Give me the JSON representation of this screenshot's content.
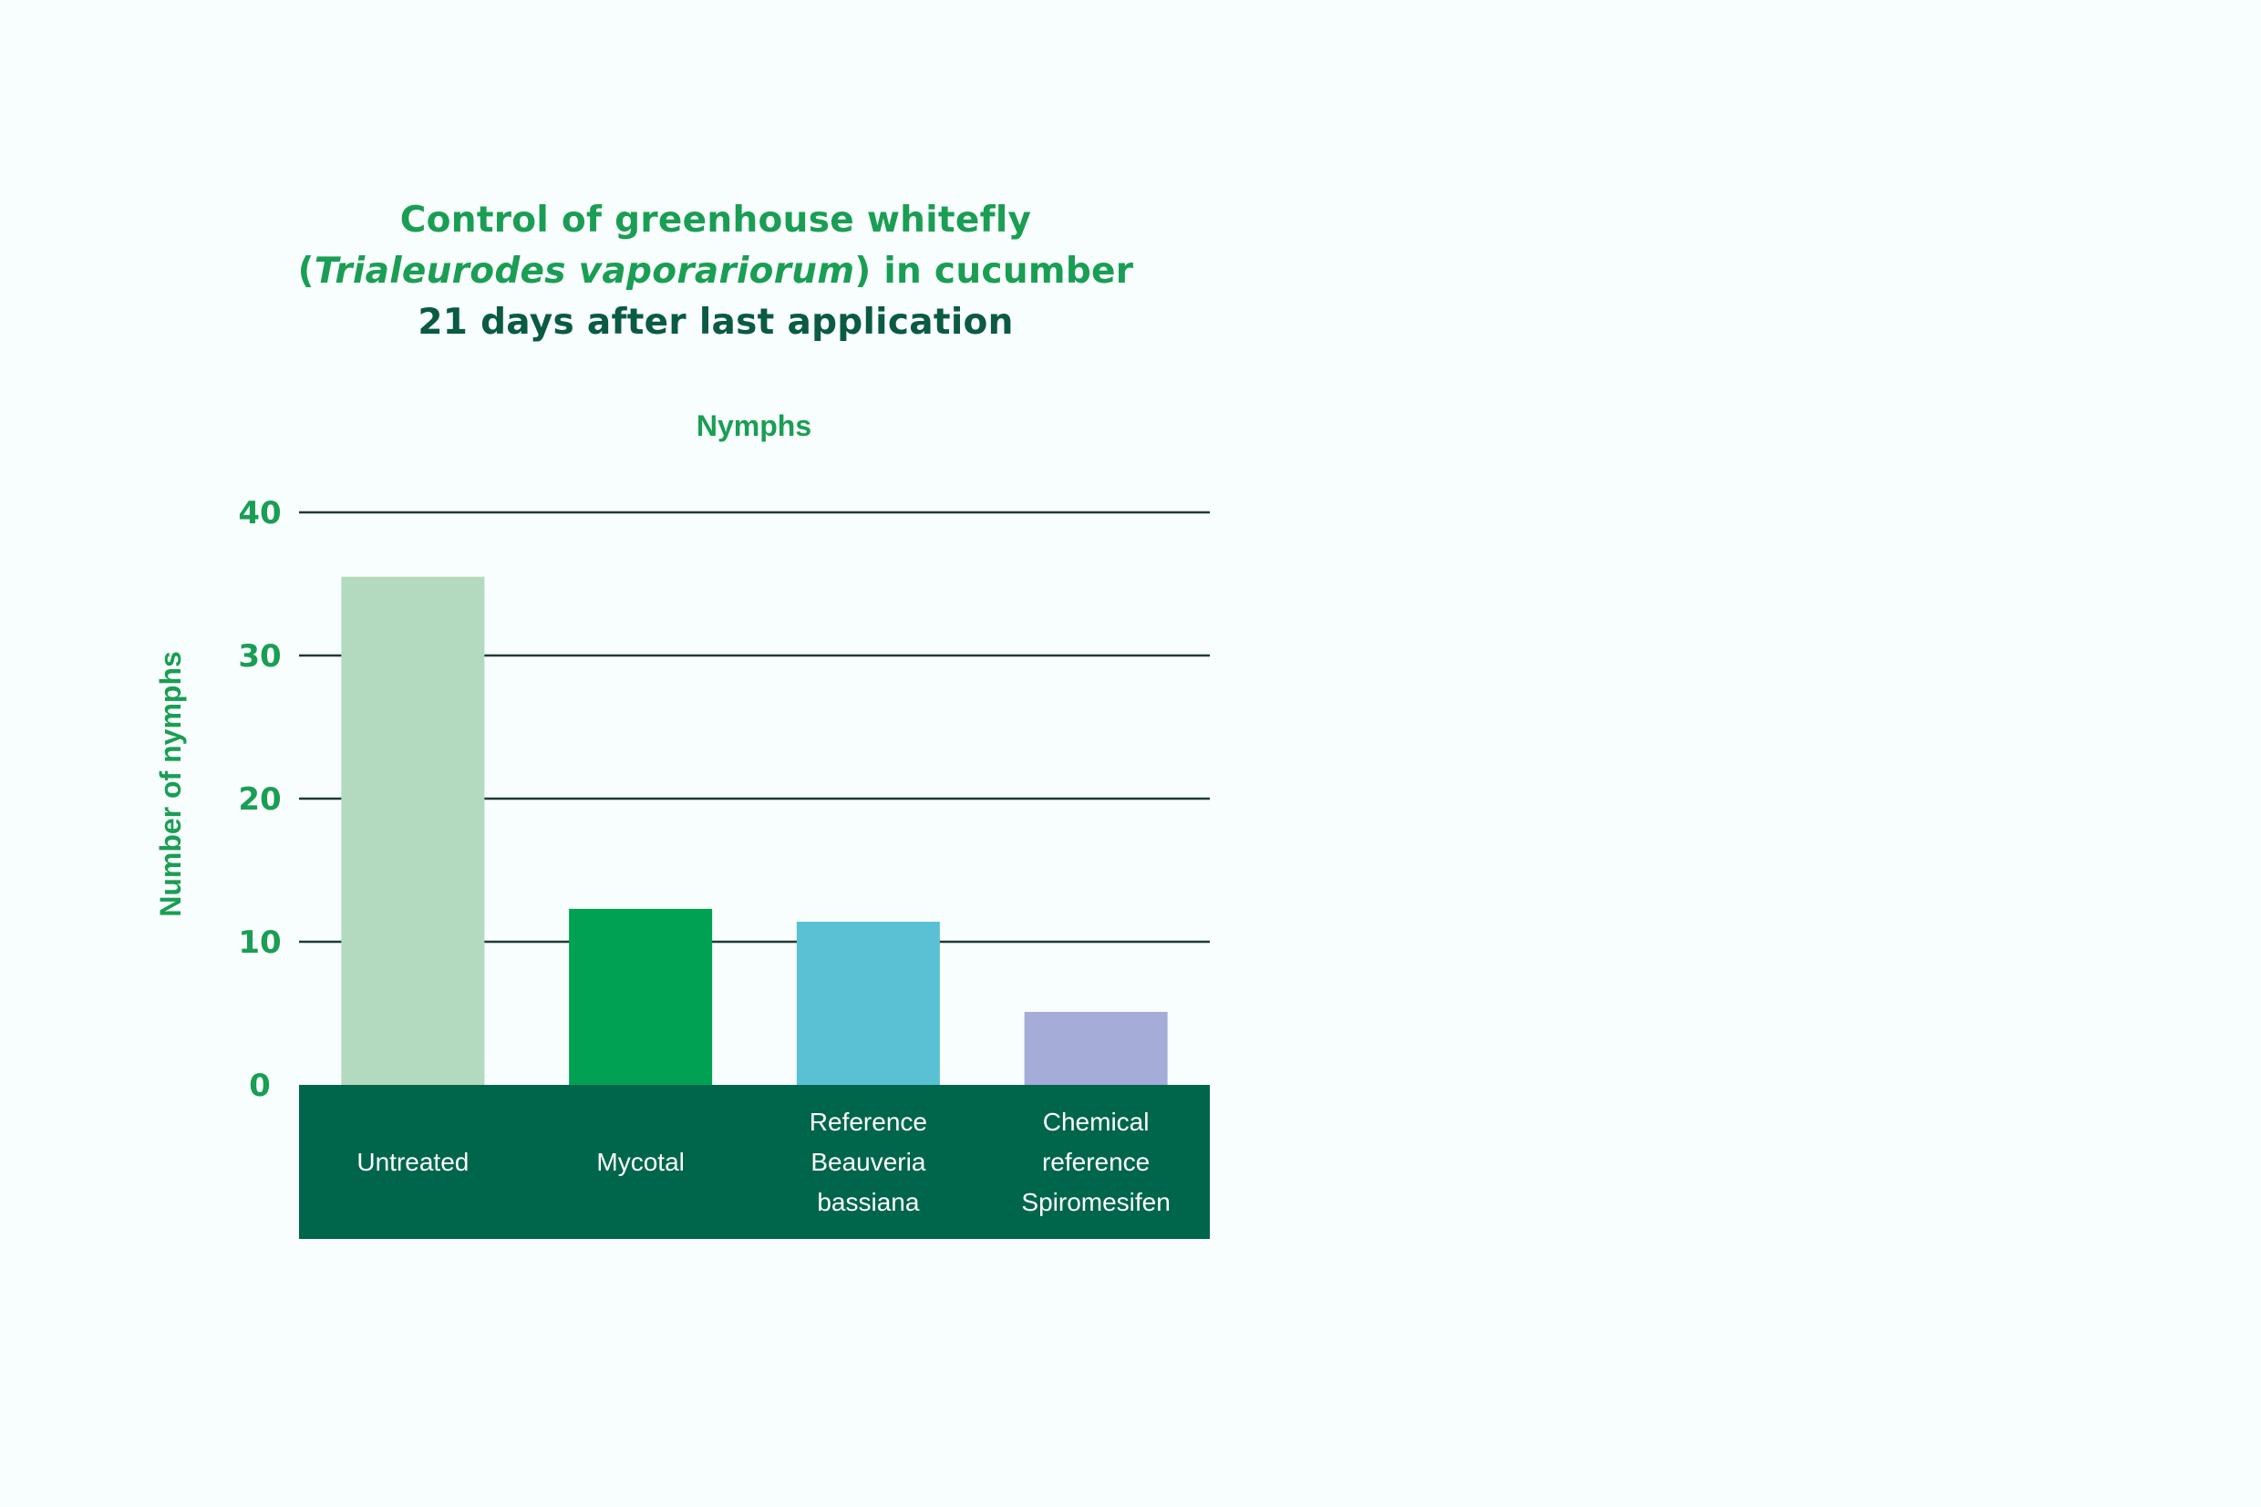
{
  "chart_data": {
    "type": "bar",
    "title_lines": [
      "Control of greenhouse whitefly",
      "(",
      "Trialeurodes vaporariorum",
      ") in cucumber",
      "21 days after last application"
    ],
    "subtitle": "Nymphs",
    "ylabel": "Number of nymphs",
    "xlabel": "",
    "ylim": [
      0,
      40
    ],
    "yticks": [
      "0",
      "10",
      "20",
      "30",
      "40"
    ],
    "grid": true,
    "categories": [
      "Untreated",
      "Mycotal",
      "Reference Beauveria bassiana",
      "Chemical reference Spiromesifen"
    ],
    "category_lines": [
      [
        "Untreated"
      ],
      [
        "Mycotal"
      ],
      [
        "Reference",
        "Beauveria",
        "bassiana"
      ],
      [
        "Chemical",
        "reference",
        "Spiromesifen"
      ]
    ],
    "values": [
      35.5,
      12.3,
      11.4,
      5.1
    ],
    "colors": [
      "#b3dabe",
      "#00a152",
      "#5ac1d4",
      "#a4acd7"
    ],
    "axis_band_color": "#00664b"
  }
}
